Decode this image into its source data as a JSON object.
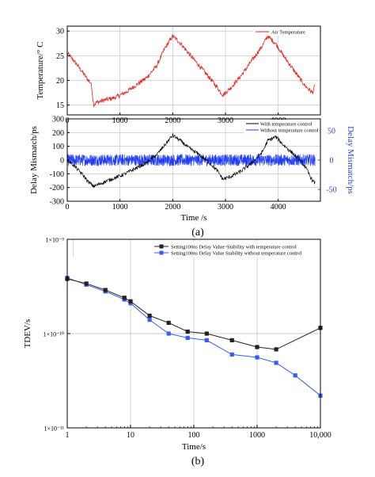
{
  "figure": {
    "caption_a": "(a)",
    "caption_b": "(b)"
  },
  "chart_data": [
    {
      "type": "line",
      "panel": "a-top",
      "xlabel": "",
      "ylabel": "Temperature/° C",
      "xlim": [
        0,
        4800
      ],
      "ylim": [
        13,
        31
      ],
      "xticks": [
        0,
        1000,
        2000,
        3000,
        4000
      ],
      "yticks": [
        15,
        20,
        25,
        30
      ],
      "grid": true,
      "legend": "top-right",
      "series": [
        {
          "name": "Air Temperature",
          "color": "#e8221b",
          "x": [
            0,
            100,
            200,
            300,
            400,
            450,
            470,
            500,
            550,
            700,
            900,
            1100,
            1300,
            1500,
            1700,
            1850,
            2000,
            2150,
            2300,
            2500,
            2700,
            2850,
            2950,
            3100,
            3300,
            3500,
            3700,
            3800,
            3950,
            4100,
            4300,
            4500,
            4650,
            4700
          ],
          "y": [
            25.5,
            24.3,
            23,
            21.5,
            20,
            19.5,
            18,
            15,
            15.5,
            16,
            16.5,
            17.5,
            19,
            20.5,
            23,
            26.5,
            29,
            27.5,
            25.5,
            23,
            20.5,
            18.5,
            17,
            18.5,
            21,
            24,
            27,
            29,
            27.5,
            25,
            22,
            19,
            17.5,
            19
          ]
        }
      ]
    },
    {
      "type": "line",
      "panel": "a-bottom",
      "xlabel": "Time /s",
      "ylabel": "Delay Mismatch/ps",
      "ylabel_right": "Delay Mismatch/ps",
      "xlim": [
        0,
        4800
      ],
      "ylim": [
        -300,
        300
      ],
      "ylim_right": [
        -70,
        70
      ],
      "xticks": [
        0,
        1000,
        2000,
        3000,
        4000
      ],
      "yticks": [
        -300,
        -200,
        -100,
        0,
        100,
        200,
        300
      ],
      "yticks_right": [
        -50,
        0,
        50
      ],
      "grid": true,
      "legend": "top-right",
      "series": [
        {
          "name": "With temperature control",
          "color": "#000000",
          "axis": "left",
          "x": [
            0,
            100,
            200,
            300,
            400,
            500,
            550,
            700,
            900,
            1100,
            1300,
            1500,
            1700,
            1850,
            2000,
            2150,
            2300,
            2500,
            2700,
            2850,
            2950,
            3100,
            3300,
            3500,
            3700,
            3800,
            3950,
            4100,
            4300,
            4500,
            4650,
            4700
          ],
          "y": [
            0,
            -30,
            -70,
            -110,
            -160,
            -190,
            -185,
            -160,
            -130,
            -100,
            -60,
            -20,
            40,
            110,
            180,
            140,
            90,
            40,
            -20,
            -80,
            -140,
            -120,
            -80,
            -20,
            60,
            140,
            170,
            110,
            40,
            -40,
            -150,
            -170
          ]
        },
        {
          "name": "Without temperature control",
          "color": "#1f3cff",
          "axis": "right",
          "x": [
            0,
            4700
          ],
          "y": [
            0,
            0
          ],
          "noise_amplitude": 10
        }
      ]
    },
    {
      "type": "line",
      "panel": "b",
      "xlabel": "Time/s",
      "ylabel": "TDEV/s",
      "xscale": "log",
      "yscale": "log",
      "xlim": [
        1,
        10000
      ],
      "ylim": [
        1e-11,
        1e-09
      ],
      "xticks": [
        1,
        10,
        100,
        1000,
        10000
      ],
      "xtick_labels": [
        "1",
        "10",
        "100",
        "1000",
        "10,000"
      ],
      "ytick_labels": [
        "1×10⁻⁹",
        "1×10⁻¹⁰",
        "1×10⁻¹¹"
      ],
      "grid": true,
      "legend": "top-right",
      "series": [
        {
          "name": "Setting100ns Delay Value~Stability with temperature control",
          "color": "#222222",
          "marker": "square",
          "x": [
            1,
            2,
            4,
            8,
            10,
            20,
            40,
            80,
            160,
            400,
            1000,
            2000,
            10000
          ],
          "y": [
            3.8e-10,
            3.4e-10,
            2.9e-10,
            2.4e-10,
            2.2e-10,
            1.55e-10,
            1.3e-10,
            1.05e-10,
            1e-10,
            8.5e-11,
            7.2e-11,
            6.8e-11,
            1.15e-10
          ]
        },
        {
          "name": "Setting100ns Delay Value  Stability without temperature control",
          "color": "#3a5cf0",
          "marker": "square",
          "x": [
            1,
            2,
            4,
            8,
            10,
            20,
            40,
            80,
            160,
            400,
            1000,
            2000,
            4000,
            10000
          ],
          "y": [
            3.9e-10,
            3.3e-10,
            2.8e-10,
            2.3e-10,
            2.1e-10,
            1.4e-10,
            1e-10,
            9e-11,
            8.5e-11,
            6e-11,
            5.6e-11,
            4.9e-11,
            3.6e-11,
            2.2e-11
          ]
        }
      ]
    }
  ]
}
